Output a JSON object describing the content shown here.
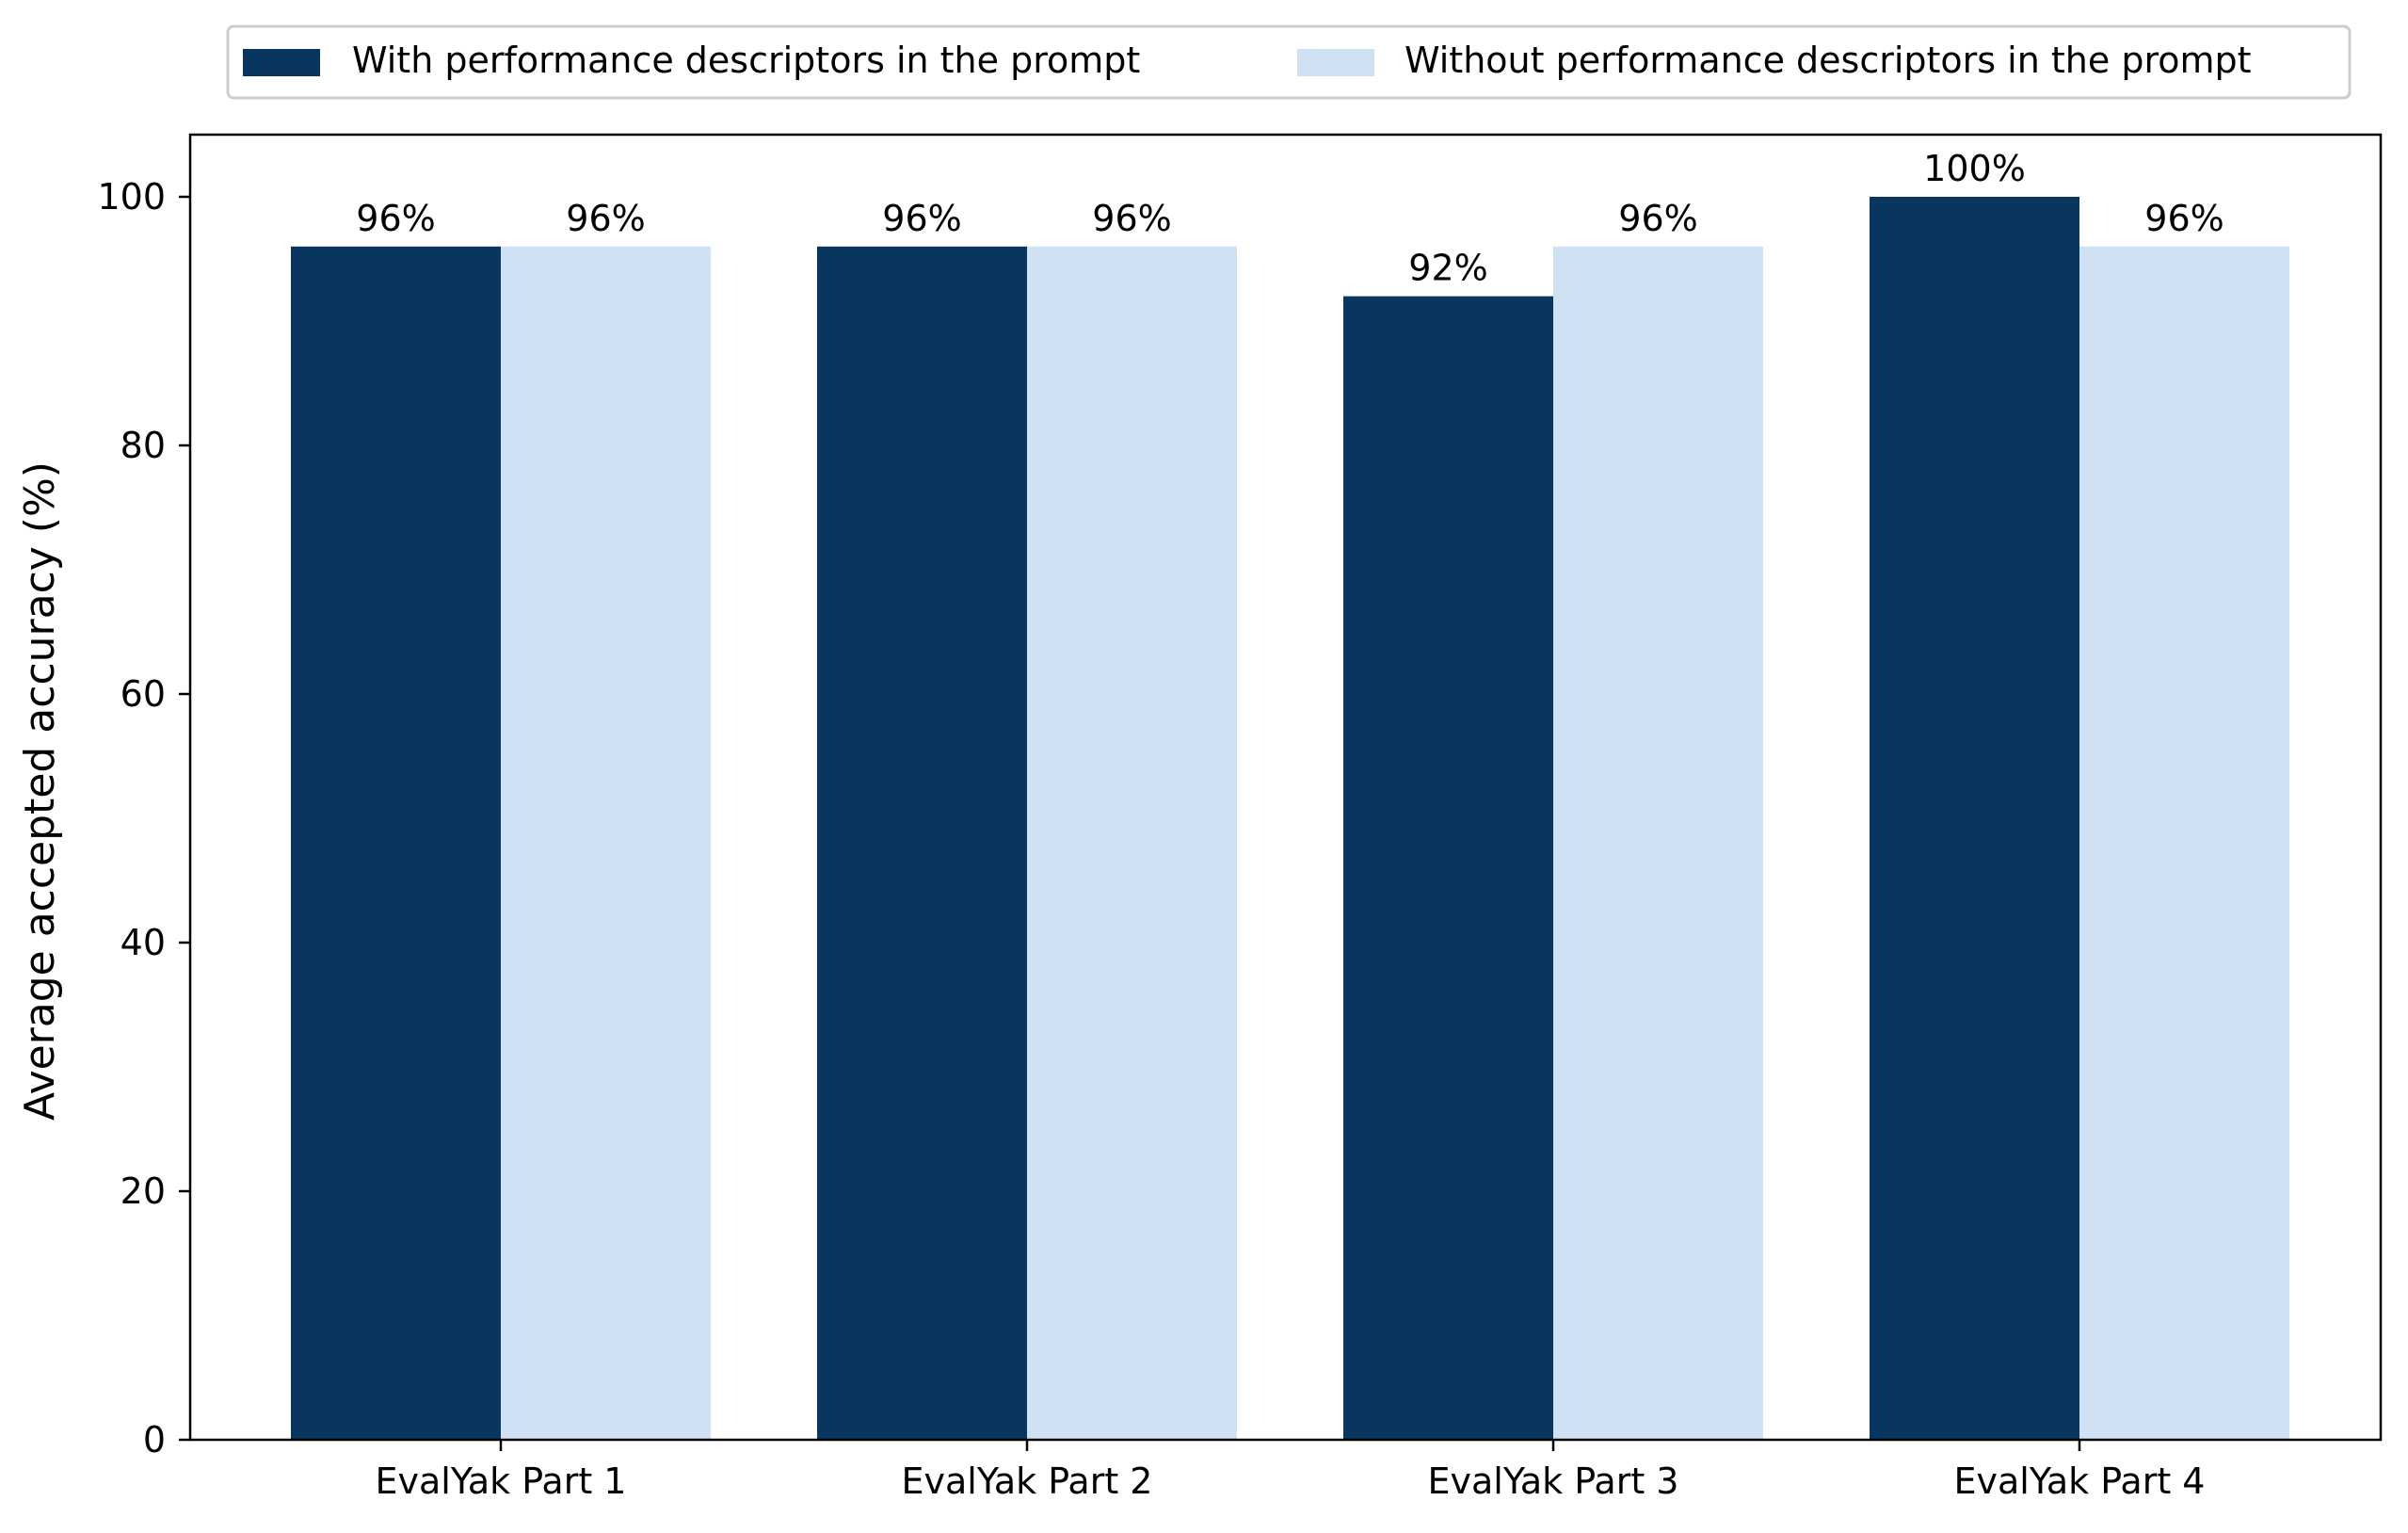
{
  "colors": {
    "with": "#08365f",
    "without": "#cfe1f2",
    "axis": "#000000",
    "legend_border": "#cccccc"
  },
  "chart_data": {
    "type": "bar",
    "categories": [
      "EvalYak Part 1",
      "EvalYak Part 2",
      "EvalYak Part 3",
      "EvalYak Part 4"
    ],
    "series": [
      {
        "name": "With performance descriptors in the prompt",
        "values": [
          96,
          96,
          92,
          100
        ],
        "labels": [
          "96%",
          "96%",
          "92%",
          "100%"
        ]
      },
      {
        "name": "Without performance descriptors in the prompt",
        "values": [
          96,
          96,
          96,
          96
        ],
        "labels": [
          "96%",
          "96%",
          "96%",
          "96%"
        ]
      }
    ],
    "xlabel": "",
    "ylabel": "Average accepted accuracy (%)",
    "ylim": [
      0,
      105
    ],
    "yticks": [
      0,
      20,
      40,
      60,
      80,
      100
    ],
    "grid": false,
    "legend_position": "top-center"
  }
}
